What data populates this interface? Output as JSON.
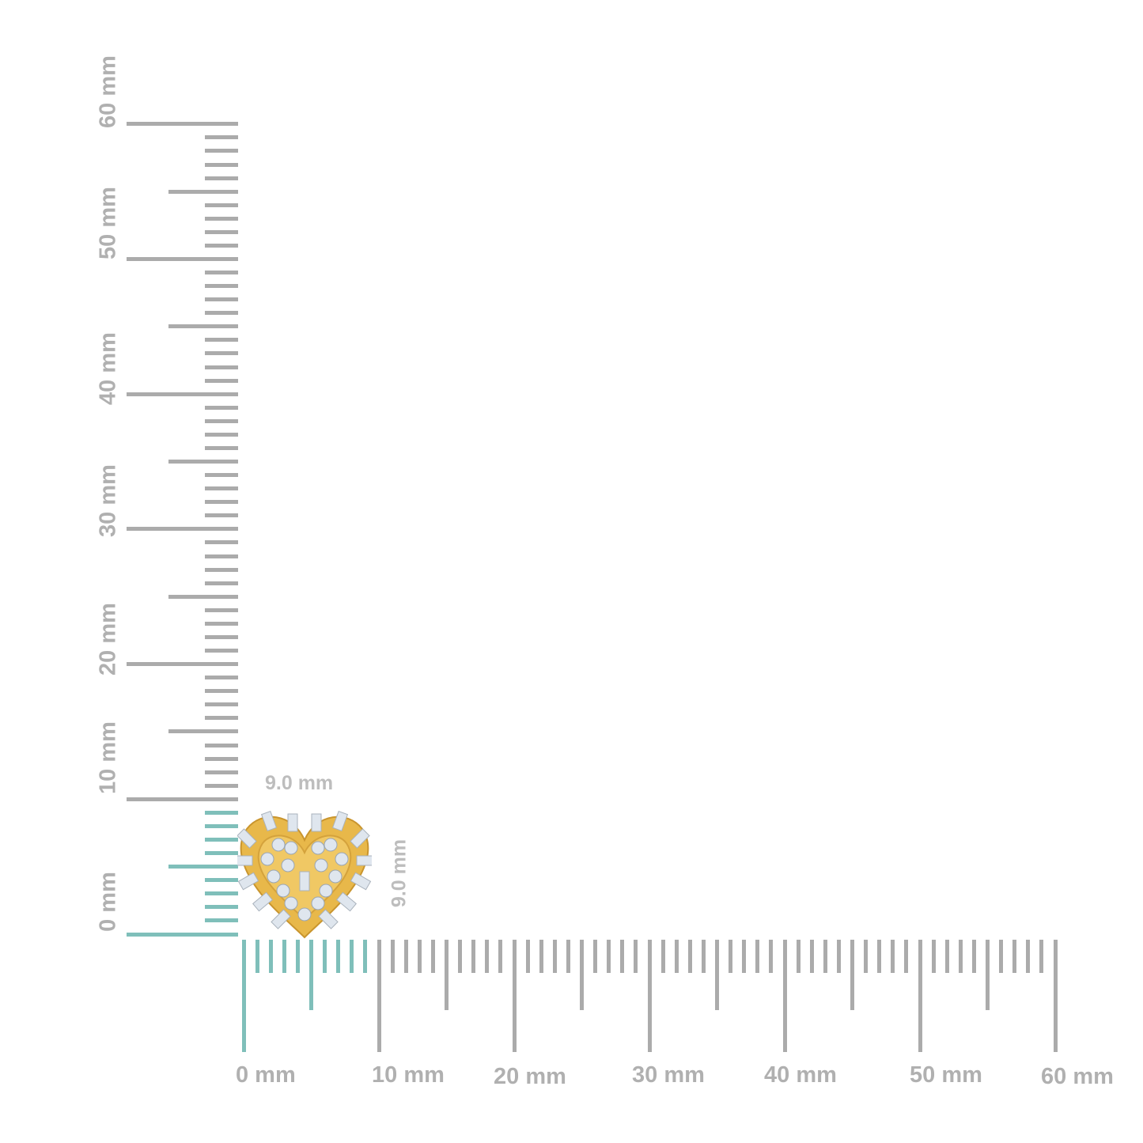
{
  "ruler": {
    "unit": "mm",
    "min": 0,
    "max": 60,
    "highlight_mm": 9,
    "colors": {
      "tick": "#ababab",
      "highlight": "#7fbfba"
    },
    "horizontal_labels": [
      "0 mm",
      "10 mm",
      "20 mm",
      "30 mm",
      "40 mm",
      "50 mm",
      "60 mm"
    ],
    "vertical_labels": [
      "0 mm",
      "10 mm",
      "20 mm",
      "30 mm",
      "40 mm",
      "50 mm",
      "60 mm"
    ]
  },
  "product": {
    "name_icon": "heart-earring",
    "width_label": "9.0 mm",
    "height_label": "9.0 mm",
    "colors": {
      "gold": "#e8b84a",
      "gem": "#dfe6ee"
    }
  }
}
